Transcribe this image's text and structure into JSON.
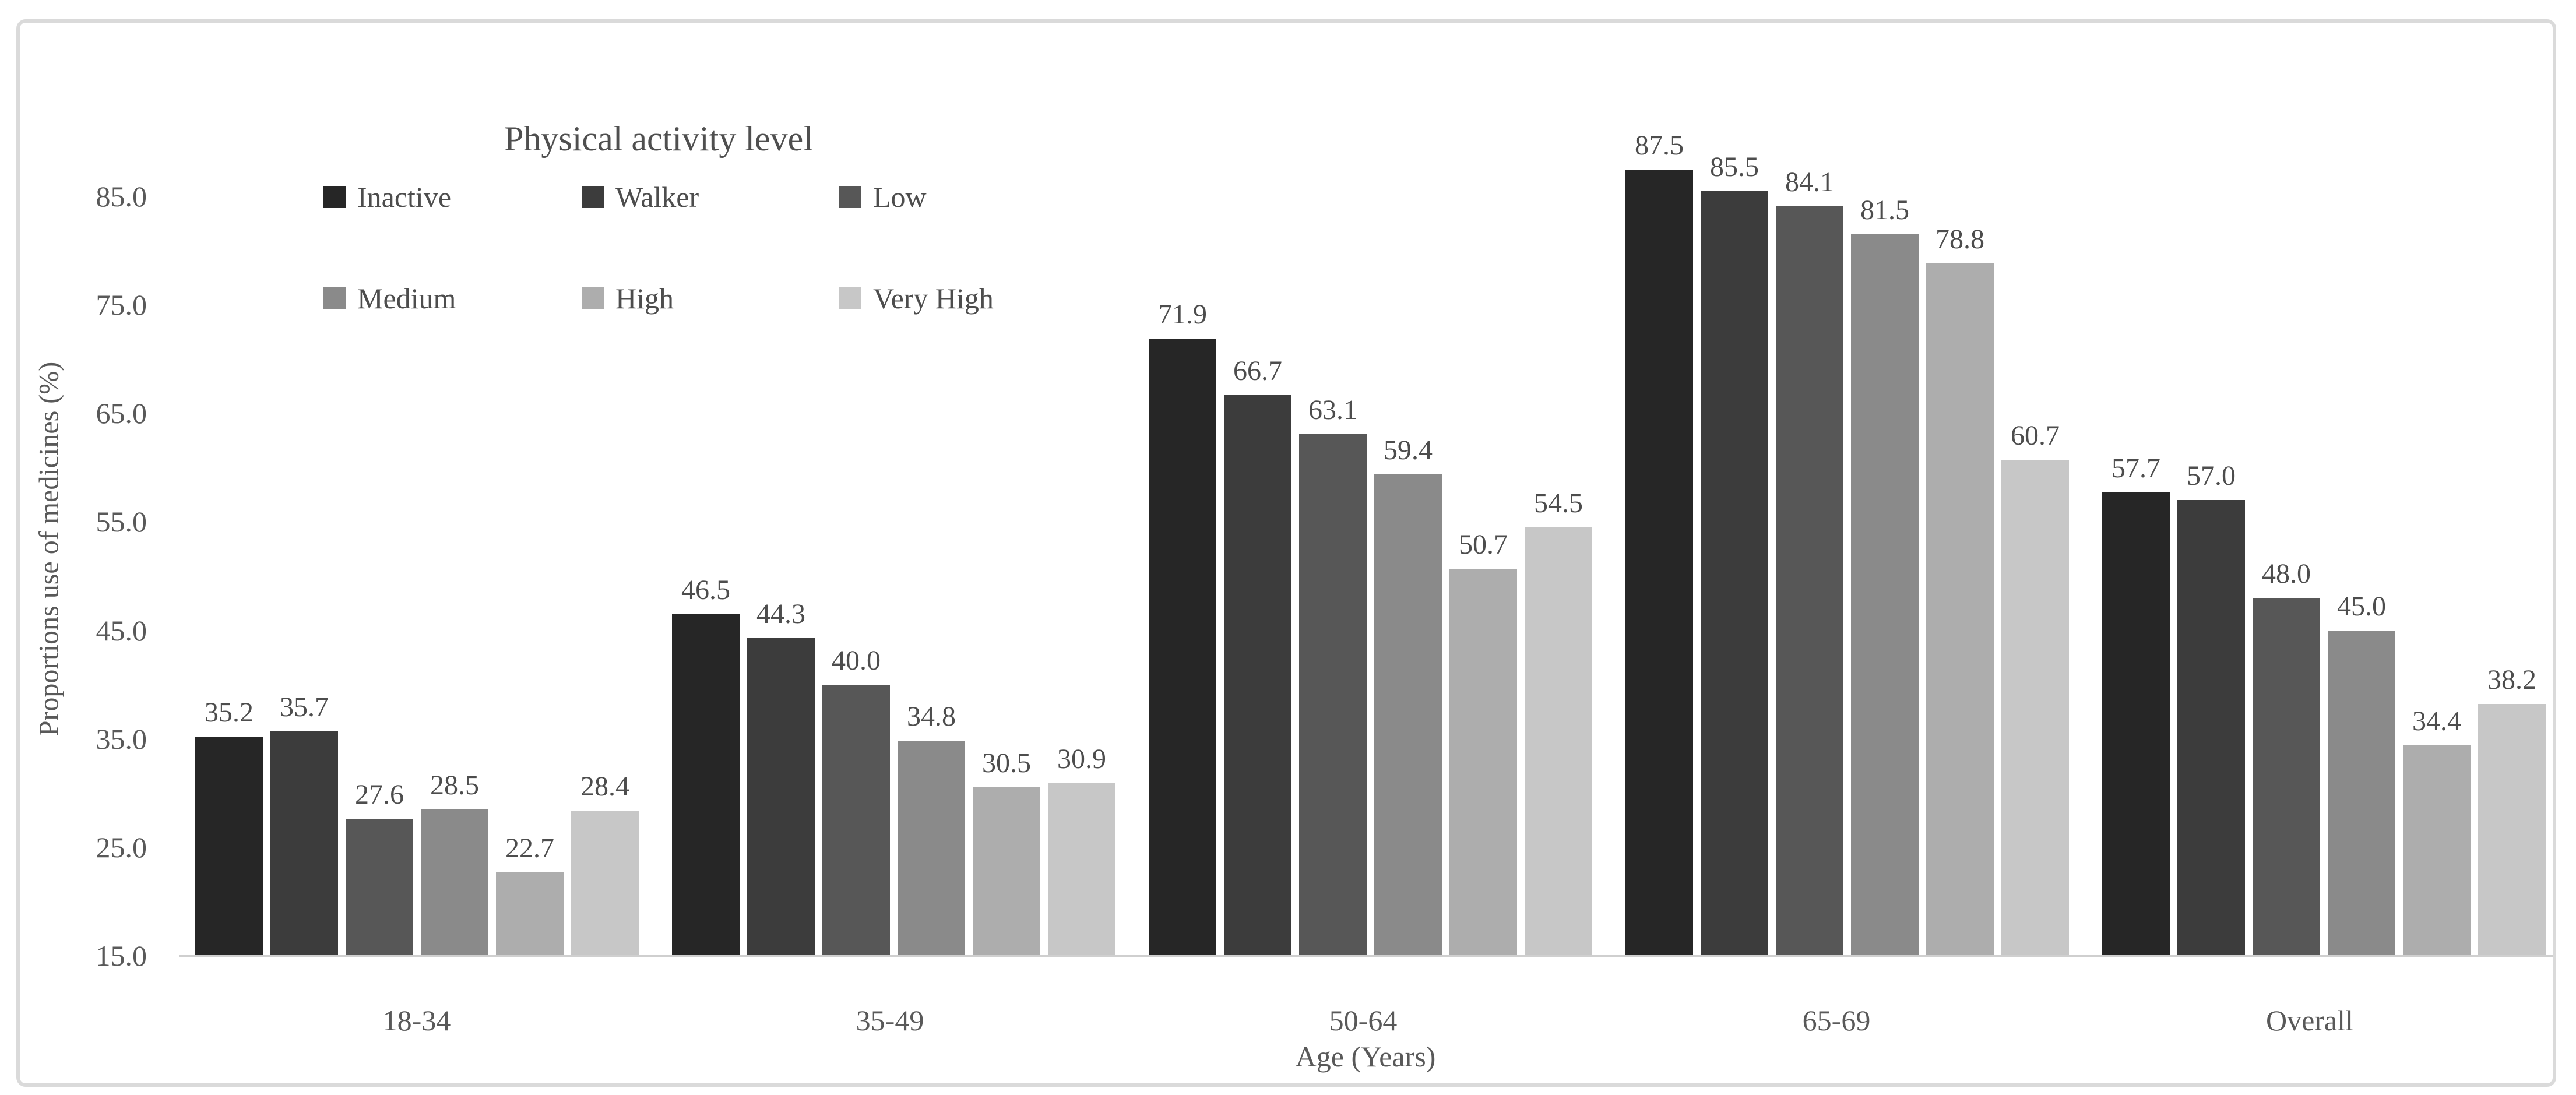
{
  "chart_data": {
    "type": "bar",
    "title": "Physical activity level",
    "xlabel": "Age (Years)",
    "ylabel": "Proportions use of medicines (%)",
    "categories": [
      "18-34",
      "35-49",
      "50-64",
      "65-69",
      "Overall"
    ],
    "series": [
      {
        "name": "Inactive",
        "color": "#262626",
        "values": [
          35.2,
          46.5,
          71.9,
          87.5,
          57.7
        ]
      },
      {
        "name": "Walker",
        "color": "#3c3c3c",
        "values": [
          35.7,
          44.3,
          66.7,
          85.5,
          57.0
        ]
      },
      {
        "name": "Low",
        "color": "#575757",
        "values": [
          27.6,
          40.0,
          63.1,
          84.1,
          48.0
        ]
      },
      {
        "name": "Medium",
        "color": "#8a8a8a",
        "values": [
          28.5,
          34.8,
          59.4,
          81.5,
          45.0
        ]
      },
      {
        "name": "High",
        "color": "#adadad",
        "values": [
          22.7,
          30.5,
          50.7,
          78.8,
          34.4
        ]
      },
      {
        "name": "Very High",
        "color": "#c7c7c7",
        "values": [
          28.4,
          30.9,
          54.5,
          60.7,
          38.2
        ]
      }
    ],
    "y_axis": {
      "ticks": [
        "85.0",
        "75.0",
        "65.0",
        "55.0",
        "45.0",
        "35.0",
        "25.0",
        "15.0"
      ],
      "min": 15,
      "max": 90,
      "tick_step": 10
    },
    "data_labels": "one decimal, above each bar",
    "legend_position": "inside top-left, two rows of three",
    "grid": false,
    "axis_line_color": "#cfcfcf",
    "text_color": "#595959"
  }
}
